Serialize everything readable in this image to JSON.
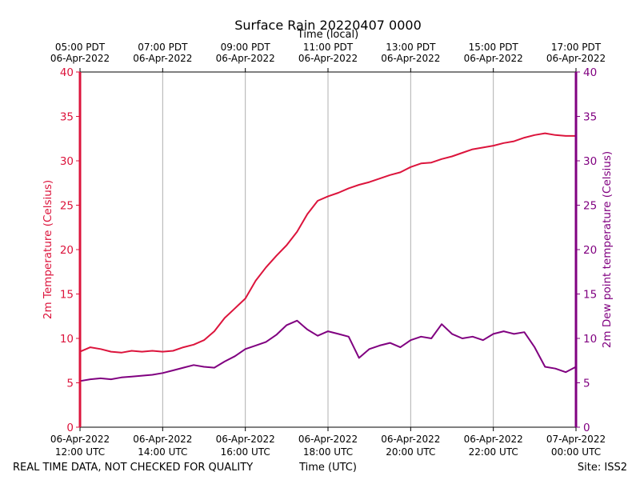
{
  "chart_data": {
    "type": "line",
    "title": "Surface Rain 20220407 0000",
    "top_xlabel": "Time (local)",
    "xlabel": "Time (UTC)",
    "ylabel_left": "2m Temperature (Celsius)",
    "ylabel_right": "2m Dew point temperature (Celsius)",
    "footer_left": "REAL TIME DATA, NOT CHECKED FOR QUALITY",
    "footer_right": "Site: ISS2",
    "x_unit": "hours since 06-Apr-2022 12:00 UTC",
    "xlim": [
      0,
      12
    ],
    "ylim": [
      0,
      40
    ],
    "yticks": [
      "0",
      "5",
      "10",
      "15",
      "20",
      "25",
      "30",
      "35",
      "40"
    ],
    "bottom_ticks": [
      {
        "date": "06-Apr-2022",
        "time": "12:00 UTC"
      },
      {
        "date": "06-Apr-2022",
        "time": "14:00 UTC"
      },
      {
        "date": "06-Apr-2022",
        "time": "16:00 UTC"
      },
      {
        "date": "06-Apr-2022",
        "time": "18:00 UTC"
      },
      {
        "date": "06-Apr-2022",
        "time": "20:00 UTC"
      },
      {
        "date": "06-Apr-2022",
        "time": "22:00 UTC"
      },
      {
        "date": "07-Apr-2022",
        "time": "00:00 UTC"
      }
    ],
    "top_ticks": [
      {
        "time": "05:00 PDT",
        "date": "06-Apr-2022"
      },
      {
        "time": "07:00 PDT",
        "date": "06-Apr-2022"
      },
      {
        "time": "09:00 PDT",
        "date": "06-Apr-2022"
      },
      {
        "time": "11:00 PDT",
        "date": "06-Apr-2022"
      },
      {
        "time": "13:00 PDT",
        "date": "06-Apr-2022"
      },
      {
        "time": "15:00 PDT",
        "date": "06-Apr-2022"
      },
      {
        "time": "17:00 PDT",
        "date": "06-Apr-2022"
      }
    ],
    "grid": "vertical",
    "series": [
      {
        "name": "2m Temperature",
        "axis": "left",
        "color": "#dc143c",
        "x": [
          0,
          0.25,
          0.5,
          0.75,
          1,
          1.25,
          1.5,
          1.75,
          2,
          2.25,
          2.5,
          2.75,
          3,
          3.25,
          3.5,
          3.75,
          4,
          4.25,
          4.5,
          4.75,
          5,
          5.25,
          5.5,
          5.75,
          6,
          6.25,
          6.5,
          6.75,
          7,
          7.25,
          7.5,
          7.75,
          8,
          8.25,
          8.5,
          8.75,
          9,
          9.25,
          9.5,
          9.75,
          10,
          10.25,
          10.5,
          10.75,
          11,
          11.25,
          11.5,
          11.75,
          12
        ],
        "y": [
          8.5,
          9.0,
          8.8,
          8.5,
          8.4,
          8.6,
          8.5,
          8.6,
          8.5,
          8.6,
          9.0,
          9.3,
          9.8,
          10.8,
          12.3,
          13.4,
          14.5,
          16.5,
          18.0,
          19.3,
          20.5,
          22.0,
          24.0,
          25.5,
          26.0,
          26.4,
          26.9,
          27.3,
          27.6,
          28.0,
          28.4,
          28.7,
          29.3,
          29.7,
          29.8,
          30.2,
          30.5,
          30.9,
          31.3,
          31.5,
          31.7,
          32.0,
          32.2,
          32.6,
          32.9,
          33.1,
          32.9,
          32.8,
          32.8
        ]
      },
      {
        "name": "2m Dew point temperature",
        "axis": "right",
        "color": "#800080",
        "x": [
          0,
          0.25,
          0.5,
          0.75,
          1,
          1.25,
          1.5,
          1.75,
          2,
          2.25,
          2.5,
          2.75,
          3,
          3.25,
          3.5,
          3.75,
          4,
          4.25,
          4.5,
          4.75,
          5,
          5.25,
          5.5,
          5.75,
          6,
          6.25,
          6.5,
          6.75,
          7,
          7.25,
          7.5,
          7.75,
          8,
          8.25,
          8.5,
          8.75,
          9,
          9.25,
          9.5,
          9.75,
          10,
          10.25,
          10.5,
          10.75,
          11,
          11.25,
          11.5,
          11.75,
          12
        ],
        "y": [
          5.2,
          5.4,
          5.5,
          5.4,
          5.6,
          5.7,
          5.8,
          5.9,
          6.1,
          6.4,
          6.7,
          7.0,
          6.8,
          6.7,
          7.4,
          8.0,
          8.8,
          9.2,
          9.6,
          10.4,
          11.5,
          12.0,
          11.0,
          10.3,
          10.8,
          10.5,
          10.2,
          7.8,
          8.8,
          9.2,
          9.5,
          9.0,
          9.8,
          10.2,
          10.0,
          11.6,
          10.5,
          10.0,
          10.2,
          9.8,
          10.5,
          10.8,
          10.5,
          10.7,
          9.0,
          6.8,
          6.6,
          6.2,
          6.8
        ]
      }
    ]
  }
}
